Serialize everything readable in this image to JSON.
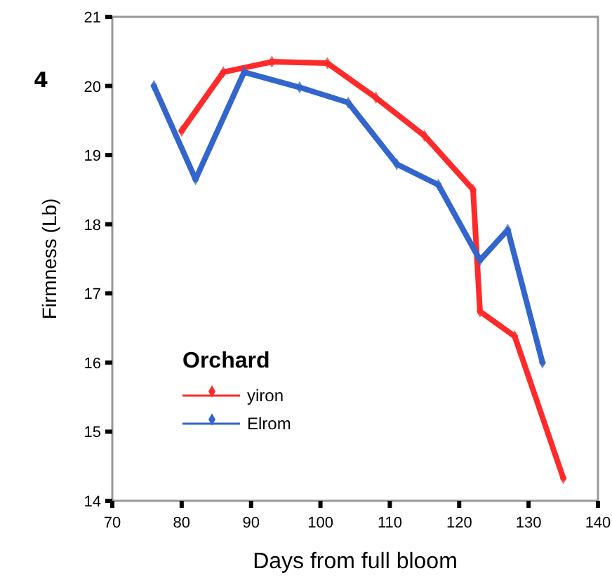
{
  "chart_data": {
    "type": "line",
    "xlabel": "Days from full bloom",
    "ylabel": "Firmness (Lb)",
    "legend_title": "Orchard",
    "legend": "bottom left",
    "marker": "diamond",
    "line_style": "solid",
    "grid": false,
    "annotations": [
      "4"
    ],
    "xlim": [
      70,
      140
    ],
    "xticks": [
      70,
      80,
      90,
      100,
      110,
      120,
      130,
      140
    ],
    "ylim": [
      14,
      21
    ],
    "yticks": [
      14,
      15,
      16,
      17,
      18,
      19,
      20,
      21
    ],
    "series": [
      {
        "name": "yiron",
        "color": "#ff2a2a",
        "x": [
          80,
          86,
          93,
          101,
          108,
          115,
          122,
          123,
          128,
          135
        ],
        "values": [
          19.35,
          20.2,
          20.35,
          20.33,
          19.83,
          19.28,
          18.5,
          16.74,
          16.38,
          14.33
        ]
      },
      {
        "name": "Elrom",
        "color": "#3366cc",
        "x": [
          76,
          82,
          89,
          97,
          104,
          111,
          117,
          123,
          127,
          132
        ],
        "values": [
          20.0,
          18.65,
          20.2,
          19.98,
          19.76,
          18.87,
          18.57,
          17.48,
          17.92,
          16.0
        ]
      }
    ]
  }
}
